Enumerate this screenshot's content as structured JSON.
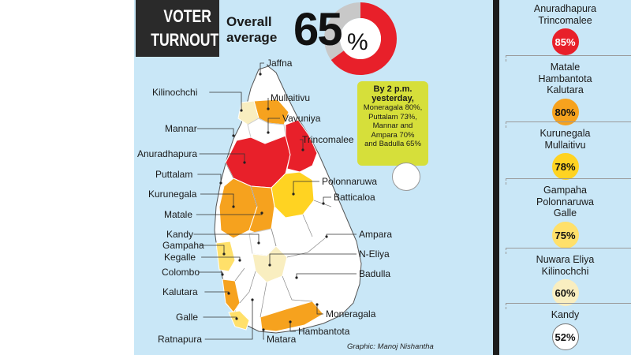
{
  "title": [
    "VOTER",
    "TURNOUT"
  ],
  "overall": {
    "label": [
      "Overall",
      "average"
    ],
    "value": "65",
    "unit": "%"
  },
  "note": {
    "heading": [
      "By 2 p.m.",
      "yesterday,"
    ],
    "lines": [
      "Moneragala 80%,",
      "Puttalam 73%,",
      "Mannar and",
      "Ampara 70%",
      "and Badulla 65%"
    ]
  },
  "credit": "Graphic: Manoj Nishantha",
  "colors": {
    "85": "#e8202a",
    "80": "#f6a21e",
    "78": "#ffd322",
    "75": "#ffe06a",
    "60": "#f9eec0",
    "52": "#ffffff",
    "background": "#c9e7f7"
  },
  "chart_data": {
    "type": "map-choropleth",
    "title": "VOTER TURNOUT",
    "overall_average_percent": 65,
    "districts": [
      {
        "name": "Jaffna"
      },
      {
        "name": "Kilinochchi",
        "turnout": 60
      },
      {
        "name": "Mullaitivu",
        "turnout": 78
      },
      {
        "name": "Vavuniya"
      },
      {
        "name": "Mannar"
      },
      {
        "name": "Trincomalee",
        "turnout": 85
      },
      {
        "name": "Anuradhapura",
        "turnout": 85
      },
      {
        "name": "Polonnaruwa",
        "turnout": 75
      },
      {
        "name": "Puttalam"
      },
      {
        "name": "Batticaloa"
      },
      {
        "name": "Kurunegala",
        "turnout": 78
      },
      {
        "name": "Matale",
        "turnout": 80
      },
      {
        "name": "Kandy",
        "turnout": 52
      },
      {
        "name": "Ampara"
      },
      {
        "name": "Gampaha",
        "turnout": 75
      },
      {
        "name": "Kegalle"
      },
      {
        "name": "N-Eliya",
        "turnout": 60
      },
      {
        "name": "Colombo"
      },
      {
        "name": "Badulla"
      },
      {
        "name": "Kalutara",
        "turnout": 80
      },
      {
        "name": "Moneragala"
      },
      {
        "name": "Galle",
        "turnout": 75
      },
      {
        "name": "Hambantota",
        "turnout": 80
      },
      {
        "name": "Ratnapura"
      },
      {
        "name": "Matara"
      }
    ],
    "legend": [
      {
        "districts": [
          "Anuradhapura",
          "Trincomalee"
        ],
        "label": "85%",
        "value": 85
      },
      {
        "districts": [
          "Matale",
          "Hambantota",
          "Kalutara"
        ],
        "label": "80%",
        "value": 80
      },
      {
        "districts": [
          "Kurunegala",
          "Mullaitivu"
        ],
        "label": "78%",
        "value": 78
      },
      {
        "districts": [
          "Gampaha",
          "Polonnaruwa",
          "Galle"
        ],
        "label": "75%",
        "value": 75
      },
      {
        "districts": [
          "Nuwara Eliya",
          "Kilinochchi"
        ],
        "label": "60%",
        "value": 60
      },
      {
        "districts": [
          "Kandy"
        ],
        "label": "52%",
        "value": 52
      }
    ],
    "donut": {
      "value": 65,
      "max": 100
    }
  }
}
